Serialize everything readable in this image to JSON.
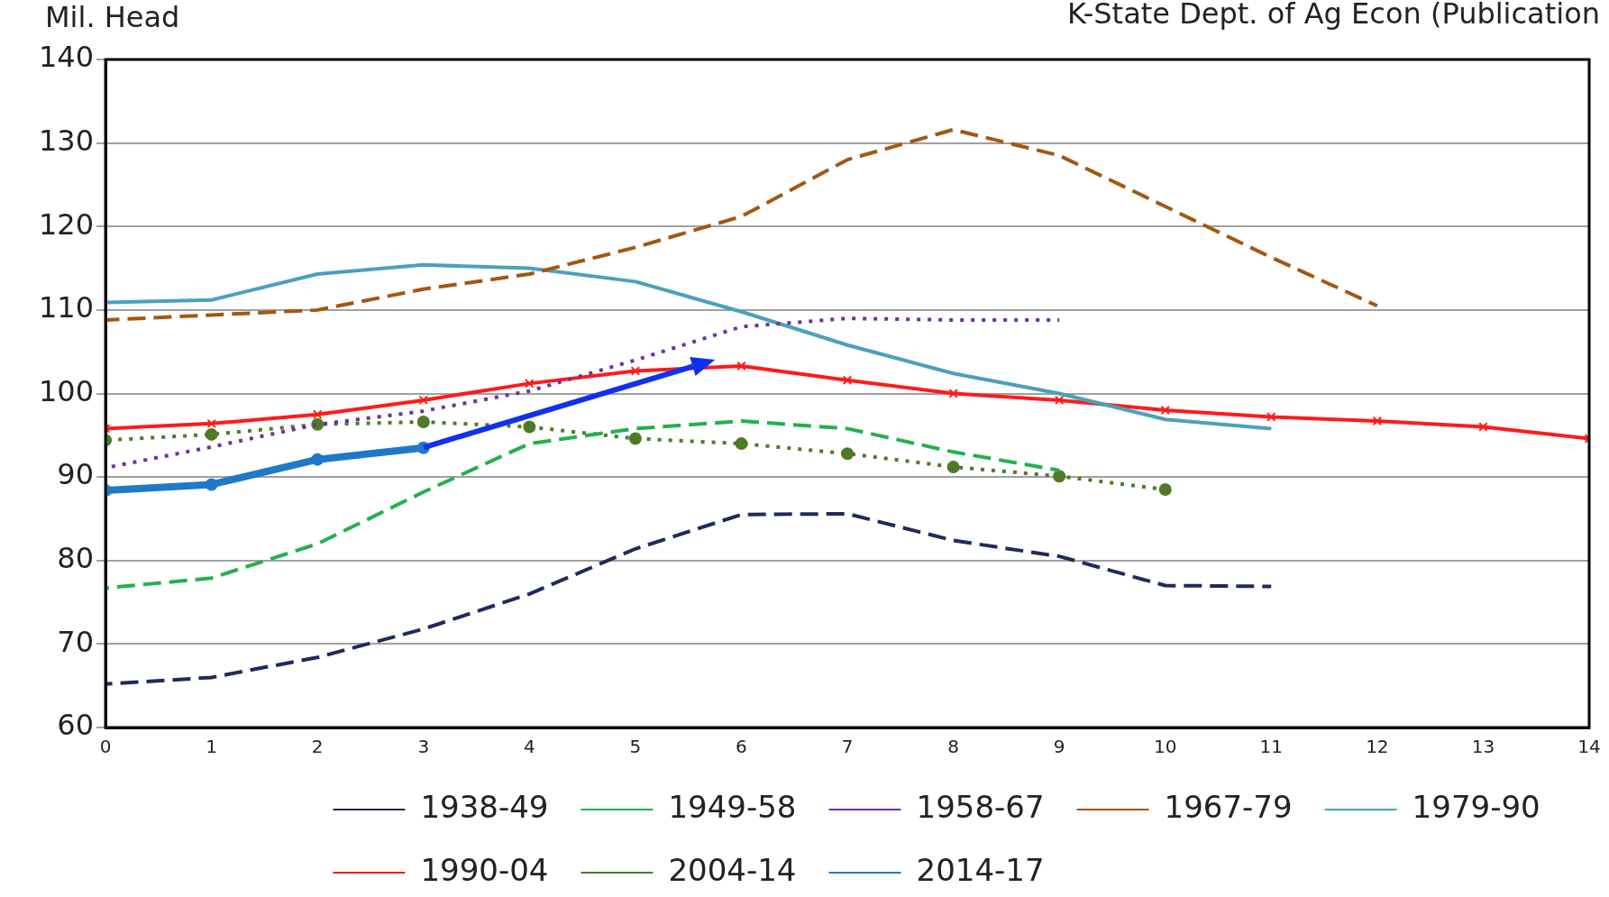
{
  "chart_data": {
    "type": "line",
    "ylabel": "Mil. Head",
    "annotations": [
      "K-State Dept. of Ag Econ (Publication"
    ],
    "x": [
      0,
      1,
      2,
      3,
      4,
      5,
      6,
      7,
      8,
      9,
      10,
      11,
      12,
      13,
      14
    ],
    "xlim": [
      0,
      14
    ],
    "xticks": [
      0,
      1,
      2,
      3,
      4,
      5,
      6,
      7,
      8,
      9,
      10,
      11,
      12,
      13,
      14
    ],
    "ylim": [
      60,
      140
    ],
    "yticks": [
      60,
      70,
      80,
      90,
      100,
      110,
      120,
      130,
      140
    ],
    "grid": "y",
    "legend": "bottom",
    "series": [
      {
        "name": "1938-49",
        "color": "#1f2a5c",
        "line_style": "dashed",
        "marker": "none",
        "values": [
          65.2,
          66,
          68.4,
          71.8,
          76,
          81.4,
          85.5,
          85.6,
          82.4,
          80.5,
          77,
          76.9,
          null,
          null,
          null
        ]
      },
      {
        "name": "1949-58",
        "color": "#22b14c",
        "line_style": "dashed",
        "marker": "none",
        "values": [
          76.7,
          77.9,
          82,
          88.2,
          94,
          95.8,
          96.7,
          95.8,
          93,
          90.8,
          null,
          null,
          null,
          null,
          null
        ]
      },
      {
        "name": "1958-67",
        "color": "#7030a0",
        "line_style": "dotted",
        "marker": "none",
        "values": [
          91.1,
          93.6,
          96.3,
          97.9,
          100.3,
          104,
          108,
          109,
          108.8,
          108.8,
          null,
          null,
          null,
          null,
          null
        ]
      },
      {
        "name": "1967-79",
        "color": "#a5560f",
        "line_style": "dashed",
        "marker": "none",
        "values": [
          108.8,
          109.4,
          110,
          112.5,
          114.3,
          117.5,
          121.2,
          128,
          131.6,
          128.5,
          122.4,
          116.3,
          110.5,
          null,
          null
        ]
      },
      {
        "name": "1979-90",
        "color": "#4ba0bd",
        "line_style": "solid",
        "marker": "none",
        "values": [
          110.9,
          111.2,
          114.3,
          115.4,
          115,
          113.4,
          109.8,
          105.8,
          102.4,
          100,
          96.9,
          95.8,
          null,
          null,
          null
        ]
      },
      {
        "name": "1990-04",
        "color": "#ff1a1a",
        "line_style": "solid",
        "marker": "cross",
        "values": [
          95.8,
          96.4,
          97.5,
          99.2,
          101.2,
          102.7,
          103.3,
          101.6,
          100,
          99.2,
          98,
          97.2,
          96.7,
          96,
          94.6
        ]
      },
      {
        "name": "2004-14",
        "color": "#4f7a28",
        "line_style": "dotted",
        "marker": "circle",
        "values": [
          94.4,
          95.1,
          96.3,
          96.6,
          96,
          94.6,
          94,
          92.8,
          91.2,
          90.1,
          88.5,
          null,
          null,
          null,
          null
        ]
      },
      {
        "name": "2014-17",
        "color": "#1f78c8",
        "line_style": "solid",
        "marker": "circle",
        "values": [
          88.4,
          89.1,
          92.1,
          93.5,
          null,
          null,
          null,
          null,
          null,
          null,
          null,
          null,
          null,
          null,
          null
        ]
      }
    ]
  }
}
